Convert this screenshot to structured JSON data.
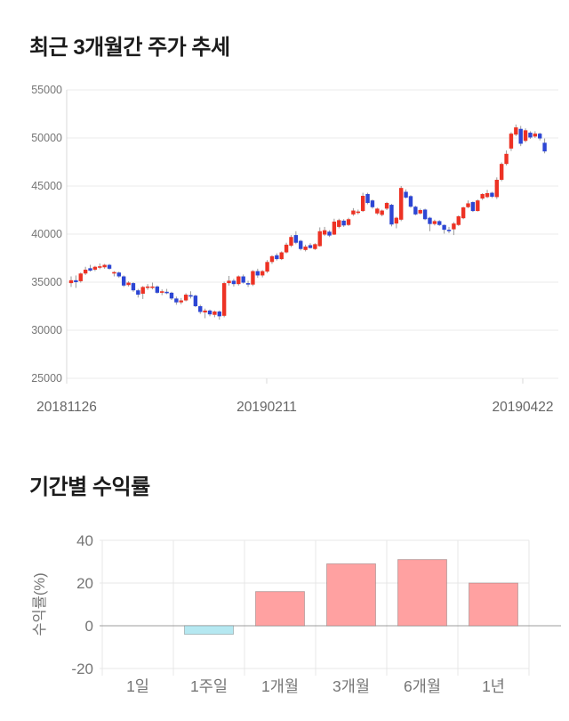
{
  "page": {
    "background": "#ffffff"
  },
  "chart_data": [
    {
      "type": "candlestick",
      "title": "최근 3개월간 주가 추세",
      "x_tick_labels": [
        "20181126",
        "20190211",
        "20190422"
      ],
      "y_ticks": [
        25000,
        30000,
        35000,
        40000,
        45000,
        50000,
        55000
      ],
      "ylim": [
        25000,
        55000
      ],
      "grid": "horizontal",
      "up_color": "#ed3224",
      "down_color": "#2d46d4",
      "wick_color": "#999999",
      "grid_color": "#ebebeb",
      "axis_color": "#d9d9d9",
      "tick_label_color": "#757575",
      "date_label_color": "#666666",
      "candles_ohlc": [
        [
          34900,
          35600,
          34500,
          35200
        ],
        [
          35200,
          35700,
          34400,
          35000
        ],
        [
          35100,
          36000,
          34950,
          35900
        ],
        [
          35900,
          36600,
          35750,
          36300
        ],
        [
          36450,
          36800,
          36100,
          36200
        ],
        [
          36300,
          36700,
          36150,
          36600
        ],
        [
          36600,
          36950,
          36350,
          36650
        ],
        [
          36550,
          36900,
          36400,
          36800
        ],
        [
          36800,
          36900,
          36300,
          36400
        ],
        [
          35900,
          36150,
          35600,
          36050
        ],
        [
          36000,
          36100,
          35450,
          35600
        ],
        [
          35600,
          35700,
          34500,
          34650
        ],
        [
          34700,
          35100,
          34550,
          34950
        ],
        [
          34900,
          35000,
          34000,
          34150
        ],
        [
          34150,
          34300,
          33400,
          33700
        ],
        [
          33800,
          34600,
          33250,
          34500
        ],
        [
          34450,
          34800,
          34200,
          34550
        ],
        [
          34500,
          34950,
          34250,
          34550
        ],
        [
          34550,
          34650,
          33800,
          33900
        ],
        [
          33900,
          34250,
          33650,
          34050
        ],
        [
          34000,
          34300,
          33750,
          33900
        ],
        [
          33900,
          34000,
          33150,
          33300
        ],
        [
          33300,
          33500,
          32650,
          32900
        ],
        [
          32900,
          33350,
          32700,
          33100
        ],
        [
          33100,
          33850,
          33000,
          33700
        ],
        [
          33650,
          34050,
          33300,
          33600
        ],
        [
          33600,
          33700,
          32400,
          32500
        ],
        [
          32500,
          32650,
          31700,
          31900
        ],
        [
          31850,
          32250,
          31250,
          32050
        ],
        [
          32050,
          32150,
          31450,
          31650
        ],
        [
          31600,
          32050,
          31350,
          31950
        ],
        [
          31950,
          32050,
          31100,
          31450
        ],
        [
          31500,
          35050,
          31350,
          34900
        ],
        [
          34900,
          35650,
          34650,
          35150
        ],
        [
          35150,
          35350,
          34550,
          34800
        ],
        [
          34800,
          35700,
          34650,
          35600
        ],
        [
          35600,
          35800,
          34850,
          34950
        ],
        [
          34900,
          35150,
          34500,
          34750
        ],
        [
          34750,
          36250,
          34600,
          36150
        ],
        [
          36150,
          36400,
          35450,
          35700
        ],
        [
          35700,
          36250,
          35500,
          36150
        ],
        [
          36100,
          37300,
          35950,
          37100
        ],
        [
          37100,
          37800,
          36900,
          37700
        ],
        [
          37800,
          38000,
          37250,
          37400
        ],
        [
          37400,
          38200,
          37300,
          38100
        ],
        [
          38100,
          39100,
          38000,
          38900
        ],
        [
          38800,
          39900,
          38650,
          39700
        ],
        [
          39900,
          40300,
          38950,
          39100
        ],
        [
          39300,
          39400,
          38300,
          38450
        ],
        [
          38350,
          38900,
          38200,
          38700
        ],
        [
          38850,
          39050,
          38500,
          38550
        ],
        [
          38450,
          39050,
          38350,
          38950
        ],
        [
          38750,
          40700,
          38700,
          40300
        ],
        [
          39950,
          40750,
          39800,
          40400
        ],
        [
          40250,
          40400,
          39700,
          39850
        ],
        [
          39950,
          41600,
          39900,
          41300
        ],
        [
          40750,
          41600,
          40600,
          41450
        ],
        [
          41400,
          41550,
          40750,
          40900
        ],
        [
          40950,
          41700,
          40850,
          41550
        ],
        [
          42050,
          42700,
          41900,
          42450
        ],
        [
          42300,
          42550,
          42050,
          42350
        ],
        [
          42400,
          44300,
          42300,
          43980
        ],
        [
          44170,
          44300,
          43100,
          43240
        ],
        [
          43500,
          43600,
          42650,
          42800
        ],
        [
          42150,
          42750,
          42000,
          42650
        ],
        [
          42000,
          42550,
          41850,
          42450
        ],
        [
          42650,
          43350,
          42500,
          43240
        ],
        [
          43050,
          43150,
          40800,
          41000
        ],
        [
          41100,
          41800,
          40600,
          41700
        ],
        [
          41500,
          45000,
          41350,
          44800
        ],
        [
          44400,
          44650,
          43700,
          43800
        ],
        [
          43950,
          44050,
          42750,
          42850
        ],
        [
          42850,
          42950,
          41950,
          42050
        ],
        [
          42150,
          42650,
          42050,
          42500
        ],
        [
          42550,
          42650,
          41450,
          41550
        ],
        [
          41700,
          41800,
          40300,
          41050
        ],
        [
          41050,
          41500,
          40900,
          41350
        ],
        [
          41350,
          41450,
          40850,
          40950
        ],
        [
          40950,
          41000,
          40050,
          40450
        ],
        [
          40450,
          40750,
          40100,
          40400
        ],
        [
          40500,
          41250,
          39900,
          41100
        ],
        [
          40950,
          41950,
          40850,
          41850
        ],
        [
          41650,
          42850,
          41550,
          42780
        ],
        [
          42800,
          43500,
          42700,
          43200
        ],
        [
          43330,
          43400,
          42300,
          42400
        ],
        [
          42400,
          43600,
          42350,
          43500
        ],
        [
          43700,
          44250,
          43550,
          44170
        ],
        [
          43850,
          44600,
          43750,
          44260
        ],
        [
          44300,
          44400,
          43750,
          43890
        ],
        [
          43850,
          45900,
          43650,
          45650
        ],
        [
          45650,
          47450,
          45500,
          47300
        ],
        [
          47300,
          48700,
          47150,
          48350
        ],
        [
          48900,
          50600,
          48650,
          50450
        ],
        [
          50350,
          51400,
          50200,
          51100
        ],
        [
          50950,
          51250,
          49150,
          49400
        ],
        [
          49700,
          51000,
          49550,
          50800
        ],
        [
          50550,
          50700,
          49900,
          50050
        ],
        [
          50150,
          50700,
          50000,
          50450
        ],
        [
          50450,
          50550,
          49750,
          49950
        ],
        [
          49500,
          49950,
          48400,
          48600
        ]
      ]
    },
    {
      "type": "bar",
      "title": "기간별 수익률",
      "ylabel": "수익률(%)",
      "categories": [
        "1일",
        "1주일",
        "1개월",
        "3개월",
        "6개월",
        "1년"
      ],
      "values": [
        0,
        -4,
        16,
        29,
        31,
        20
      ],
      "y_ticks": [
        -20,
        0,
        20,
        40
      ],
      "ylim": [
        -20,
        40
      ],
      "grid": "both",
      "positive_color": "#ffa1a1",
      "negative_color": "#b5e8f1",
      "bar_border_color": "rgba(90,90,90,0.35)",
      "grid_color": "#e7e7e7",
      "zero_line_color": "#9e9e9e",
      "label_color": "#757575"
    }
  ]
}
